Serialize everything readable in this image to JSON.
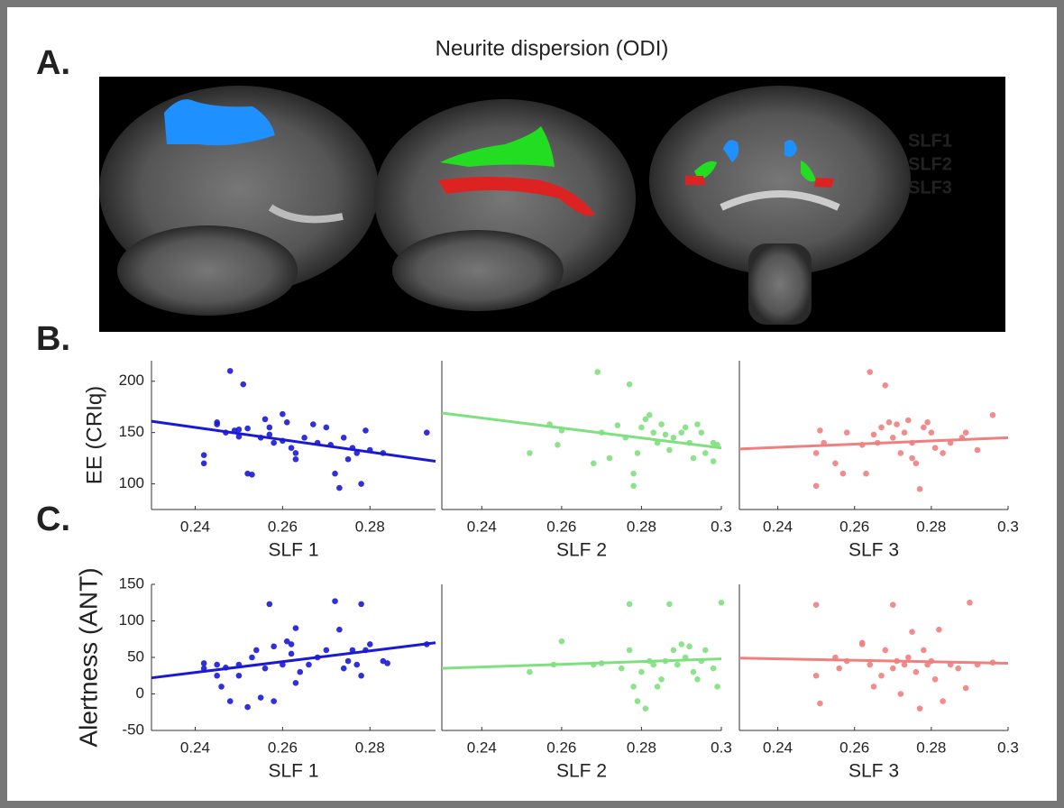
{
  "figure": {
    "title": "Neurite dispersion (ODI)",
    "panel_labels": [
      "A.",
      "B.",
      "C."
    ],
    "tracts": [
      {
        "name": "SLF1",
        "color": "#1e90ff"
      },
      {
        "name": "SLF2",
        "color": "#22dd22"
      },
      {
        "name": "SLF3",
        "color": "#dd2222"
      }
    ]
  },
  "chart_data": [
    {
      "type": "scatter",
      "x_label": "SLF 1",
      "y_label": "EE (CRIq)",
      "xlim": [
        0.23,
        0.295
      ],
      "ylim": [
        75,
        220
      ],
      "xticks": [
        0.24,
        0.26,
        0.28
      ],
      "yticks": [
        100,
        150,
        200
      ],
      "series": [
        {
          "color": "#1a1ad6",
          "x": [
            0.242,
            0.242,
            0.245,
            0.245,
            0.247,
            0.248,
            0.249,
            0.25,
            0.25,
            0.251,
            0.252,
            0.252,
            0.253,
            0.255,
            0.256,
            0.257,
            0.257,
            0.258,
            0.26,
            0.26,
            0.261,
            0.262,
            0.263,
            0.263,
            0.265,
            0.267,
            0.268,
            0.27,
            0.271,
            0.272,
            0.273,
            0.274,
            0.275,
            0.276,
            0.277,
            0.278,
            0.279,
            0.28,
            0.283,
            0.293
          ],
          "values": [
            128,
            120,
            160,
            158,
            150,
            210,
            152,
            146,
            153,
            197,
            110,
            154,
            109,
            145,
            163,
            155,
            148,
            140,
            168,
            142,
            160,
            135,
            124,
            130,
            145,
            158,
            140,
            155,
            138,
            110,
            96,
            145,
            124,
            135,
            130,
            100,
            152,
            133,
            130,
            150
          ]
        }
      ],
      "fit": {
        "x": [
          0.23,
          0.295
        ],
        "y": [
          161,
          122
        ]
      }
    },
    {
      "type": "scatter",
      "x_label": "SLF 2",
      "xlim": [
        0.23,
        0.3
      ],
      "ylim": [
        75,
        220
      ],
      "xticks": [
        0.24,
        0.26,
        0.28,
        0.3
      ],
      "series": [
        {
          "color": "#7fe07f",
          "x": [
            0.252,
            0.257,
            0.259,
            0.26,
            0.268,
            0.269,
            0.27,
            0.272,
            0.274,
            0.276,
            0.277,
            0.278,
            0.278,
            0.279,
            0.28,
            0.281,
            0.282,
            0.283,
            0.284,
            0.285,
            0.286,
            0.287,
            0.288,
            0.29,
            0.291,
            0.292,
            0.293,
            0.294,
            0.295,
            0.296,
            0.298,
            0.298,
            0.299
          ],
          "values": [
            130,
            158,
            138,
            152,
            120,
            209,
            150,
            125,
            157,
            145,
            197,
            98,
            110,
            130,
            155,
            163,
            167,
            150,
            140,
            158,
            148,
            133,
            145,
            150,
            155,
            140,
            125,
            158,
            150,
            130,
            140,
            122,
            138
          ]
        }
      ],
      "fit": {
        "x": [
          0.23,
          0.3
        ],
        "y": [
          169,
          135
        ]
      }
    },
    {
      "type": "scatter",
      "x_label": "SLF 3",
      "xlim": [
        0.23,
        0.3
      ],
      "ylim": [
        75,
        220
      ],
      "xticks": [
        0.24,
        0.26,
        0.28,
        0.3
      ],
      "series": [
        {
          "color": "#f07f7f",
          "x": [
            0.25,
            0.25,
            0.251,
            0.252,
            0.255,
            0.257,
            0.258,
            0.262,
            0.263,
            0.264,
            0.265,
            0.266,
            0.267,
            0.268,
            0.269,
            0.27,
            0.271,
            0.272,
            0.273,
            0.274,
            0.275,
            0.275,
            0.276,
            0.277,
            0.278,
            0.279,
            0.28,
            0.281,
            0.283,
            0.285,
            0.288,
            0.289,
            0.292,
            0.296
          ],
          "values": [
            98,
            130,
            152,
            140,
            120,
            110,
            150,
            138,
            110,
            209,
            148,
            140,
            155,
            196,
            160,
            145,
            158,
            130,
            150,
            162,
            140,
            125,
            120,
            95,
            155,
            160,
            150,
            135,
            130,
            140,
            145,
            150,
            133,
            167
          ]
        }
      ],
      "fit": {
        "x": [
          0.23,
          0.3
        ],
        "y": [
          134,
          145
        ]
      }
    },
    {
      "type": "scatter",
      "x_label": "SLF 1",
      "y_label": "Alertness (ANT)",
      "xlim": [
        0.23,
        0.295
      ],
      "ylim": [
        -50,
        150
      ],
      "xticks": [
        0.24,
        0.26,
        0.28
      ],
      "yticks": [
        -50,
        0,
        50,
        100,
        150
      ],
      "series": [
        {
          "color": "#1a1ad6",
          "x": [
            0.242,
            0.242,
            0.245,
            0.245,
            0.246,
            0.247,
            0.248,
            0.25,
            0.25,
            0.252,
            0.253,
            0.254,
            0.255,
            0.256,
            0.257,
            0.258,
            0.258,
            0.26,
            0.261,
            0.262,
            0.262,
            0.263,
            0.263,
            0.264,
            0.266,
            0.268,
            0.27,
            0.272,
            0.273,
            0.274,
            0.275,
            0.276,
            0.277,
            0.278,
            0.278,
            0.279,
            0.28,
            0.283,
            0.284,
            0.293
          ],
          "values": [
            42,
            35,
            25,
            40,
            10,
            36,
            -10,
            40,
            25,
            -18,
            50,
            60,
            -5,
            35,
            123,
            65,
            -10,
            40,
            72,
            68,
            55,
            90,
            15,
            30,
            40,
            50,
            60,
            127,
            88,
            35,
            45,
            60,
            40,
            123,
            25,
            60,
            68,
            45,
            42,
            68
          ]
        }
      ],
      "fit": {
        "x": [
          0.23,
          0.295
        ],
        "y": [
          22,
          70
        ]
      }
    },
    {
      "type": "scatter",
      "x_label": "SLF 2",
      "xlim": [
        0.23,
        0.3
      ],
      "ylim": [
        -50,
        150
      ],
      "xticks": [
        0.24,
        0.26,
        0.28,
        0.3
      ],
      "series": [
        {
          "color": "#7fe07f",
          "x": [
            0.252,
            0.258,
            0.26,
            0.268,
            0.27,
            0.275,
            0.277,
            0.277,
            0.278,
            0.279,
            0.28,
            0.281,
            0.282,
            0.283,
            0.284,
            0.285,
            0.286,
            0.287,
            0.288,
            0.289,
            0.29,
            0.291,
            0.292,
            0.293,
            0.294,
            0.295,
            0.296,
            0.298,
            0.299,
            0.3
          ],
          "values": [
            30,
            40,
            72,
            40,
            42,
            35,
            123,
            60,
            10,
            -10,
            30,
            -20,
            45,
            40,
            10,
            20,
            45,
            123,
            60,
            40,
            68,
            50,
            65,
            30,
            20,
            45,
            60,
            35,
            10,
            125
          ]
        }
      ],
      "fit": {
        "x": [
          0.23,
          0.3
        ],
        "y": [
          35,
          48
        ]
      }
    },
    {
      "type": "scatter",
      "x_label": "SLF 3",
      "xlim": [
        0.23,
        0.3
      ],
      "ylim": [
        -50,
        150
      ],
      "xticks": [
        0.24,
        0.26,
        0.28,
        0.3
      ],
      "series": [
        {
          "color": "#f07f7f",
          "x": [
            0.25,
            0.25,
            0.251,
            0.255,
            0.256,
            0.258,
            0.262,
            0.262,
            0.264,
            0.265,
            0.267,
            0.268,
            0.27,
            0.27,
            0.271,
            0.272,
            0.273,
            0.274,
            0.275,
            0.276,
            0.277,
            0.278,
            0.279,
            0.28,
            0.281,
            0.282,
            0.283,
            0.285,
            0.287,
            0.289,
            0.29,
            0.292,
            0.296
          ],
          "values": [
            122,
            25,
            -13,
            50,
            35,
            45,
            68,
            70,
            40,
            10,
            25,
            60,
            35,
            122,
            45,
            0,
            40,
            50,
            85,
            30,
            -20,
            60,
            40,
            45,
            20,
            88,
            -10,
            40,
            35,
            8,
            125,
            40,
            43
          ]
        }
      ],
      "fit": {
        "x": [
          0.23,
          0.3
        ],
        "y": [
          49,
          42
        ]
      }
    }
  ]
}
